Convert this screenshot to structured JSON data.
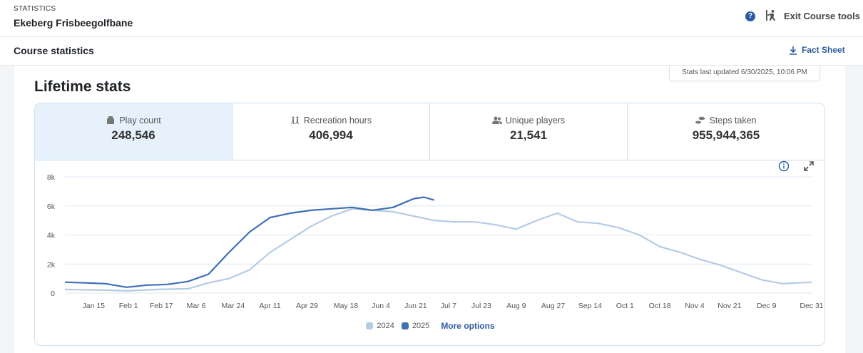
{
  "header": {
    "eyebrow": "STATISTICS",
    "course_name": "Ekeberg Frisbeegolfbane",
    "help_label": "?",
    "exit_label": "Exit Course tools"
  },
  "subheader": {
    "title": "Course statistics",
    "fact_sheet_label": "Fact Sheet"
  },
  "panel": {
    "updated": "Stats last updated 6/30/2025, 10:06 PM",
    "title": "Lifetime stats"
  },
  "tiles": [
    {
      "label": "Play count",
      "value": "248,546",
      "icon": "tee-icon"
    },
    {
      "label": "Recreation hours",
      "value": "406,994",
      "icon": "people-hiking-icon"
    },
    {
      "label": "Unique players",
      "value": "21,541",
      "icon": "users-icon"
    },
    {
      "label": "Steps taken",
      "value": "955,944,365",
      "icon": "footsteps-icon"
    }
  ],
  "legend": {
    "more_options": "More options"
  },
  "colors": {
    "series_2024": "#b5cbe3",
    "series_2025": "#3d6fb3",
    "accent": "#2c5aa0"
  },
  "chart_data": {
    "type": "line",
    "x_tick_labels": [
      "Jan 15",
      "Feb 1",
      "Feb 17",
      "Mar 6",
      "Mar 24",
      "Apr 11",
      "Apr 29",
      "May 18",
      "Jun 4",
      "Jun 21",
      "Jul 7",
      "Jul 23",
      "Aug 9",
      "Aug 27",
      "Sep 14",
      "Oct 1",
      "Oct 18",
      "Nov 4",
      "Nov 21",
      "Dec 9",
      "Dec 31"
    ],
    "x_tick_days": [
      14,
      31,
      47,
      64,
      82,
      100,
      118,
      137,
      154,
      171,
      187,
      203,
      220,
      238,
      256,
      273,
      290,
      307,
      324,
      342,
      364
    ],
    "y_tick_labels": [
      "0",
      "2k",
      "4k",
      "6k",
      "8k"
    ],
    "y_ticks": [
      0,
      2000,
      4000,
      6000,
      8000
    ],
    "ylim": [
      0,
      8000
    ],
    "grid": true,
    "legend_position": "bottom-center",
    "series": [
      {
        "name": "2024",
        "days": [
          0,
          20,
          30,
          45,
          60,
          70,
          80,
          90,
          100,
          110,
          120,
          130,
          140,
          150,
          160,
          170,
          180,
          190,
          200,
          210,
          220,
          230,
          240,
          250,
          260,
          270,
          280,
          290,
          300,
          310,
          320,
          330,
          340,
          350,
          364
        ],
        "values": [
          250,
          200,
          150,
          250,
          300,
          700,
          1000,
          1600,
          2800,
          3700,
          4600,
          5300,
          5800,
          5700,
          5600,
          5300,
          5000,
          4900,
          4900,
          4700,
          4400,
          5000,
          5500,
          4900,
          4800,
          4500,
          4000,
          3200,
          2800,
          2300,
          1900,
          1400,
          900,
          650,
          750
        ]
      },
      {
        "name": "2025",
        "days": [
          0,
          10,
          20,
          30,
          40,
          50,
          60,
          70,
          80,
          90,
          100,
          110,
          120,
          130,
          140,
          150,
          160,
          165,
          170,
          175,
          180
        ],
        "values": [
          750,
          700,
          650,
          400,
          550,
          600,
          800,
          1300,
          2800,
          4200,
          5200,
          5500,
          5700,
          5800,
          5900,
          5700,
          5900,
          6200,
          6500,
          6600,
          6400
        ]
      }
    ]
  }
}
